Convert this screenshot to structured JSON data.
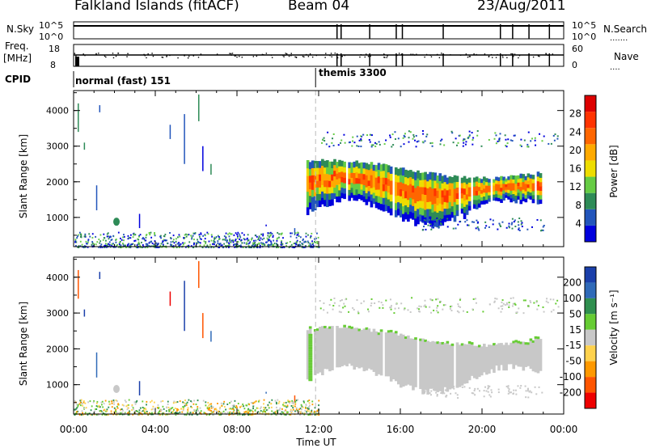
{
  "header": {
    "title": "Falkland Islands (fitACF)",
    "beam": "Beam 04",
    "date": "23/Aug/2011"
  },
  "panels": {
    "nsky_label": "N.Sky",
    "nsky_ticks": [
      "10^5",
      "10^0"
    ],
    "nsearch_label": "N.Search",
    "nsearch_ticks": [
      "10^5",
      "10^0"
    ],
    "freq_label": "Freq.",
    "freq_unit": "[MHz]",
    "freq_ticks": [
      "18",
      "8"
    ],
    "nave_label": "Nave",
    "nave_ticks": [
      "60",
      "0"
    ],
    "cpid_label": "CPID",
    "cpid_modes": [
      "normal (fast) 151",
      "themis 3300"
    ]
  },
  "colors": {
    "power": [
      "#0000dd",
      "#2255bb",
      "#2e8b57",
      "#66cc44",
      "#eedd00",
      "#ffaa00",
      "#ff6600",
      "#ff3300",
      "#dd0000"
    ],
    "velocity": [
      "#1a3faa",
      "#2f6ab8",
      "#2f8f4f",
      "#66cc33",
      "#c8c8c8",
      "#ffd24d",
      "#ff9900",
      "#ff5500",
      "#ee0000"
    ]
  },
  "chart_data": [
    {
      "type": "heatmap",
      "name": "power",
      "xlabel": "Time UT",
      "ylabel": "Slant Range [km]",
      "x_range": [
        "00:00",
        "24:00"
      ],
      "x_ticks": [
        "00:00",
        "04:00",
        "08:00",
        "12:00",
        "16:00",
        "20:00",
        "00:00"
      ],
      "ylim": [
        180,
        4560
      ],
      "y_ticks": [
        1000,
        2000,
        3000,
        4000
      ],
      "colorbar": {
        "label": "Power [dB]",
        "range": [
          0,
          32
        ],
        "ticks": [
          4,
          8,
          12,
          16,
          20,
          24,
          28
        ]
      }
    },
    {
      "type": "heatmap",
      "name": "velocity",
      "xlabel": "Time UT",
      "ylabel": "Slant Range [km]",
      "x_range": [
        "00:00",
        "24:00"
      ],
      "x_ticks": [
        "00:00",
        "04:00",
        "08:00",
        "12:00",
        "16:00",
        "20:00",
        "00:00"
      ],
      "ylim": [
        180,
        4560
      ],
      "y_ticks": [
        1000,
        2000,
        3000,
        4000
      ],
      "colorbar": {
        "label": "Velocity [m s⁻¹]",
        "levels": [
          -200,
          -100,
          -50,
          -15,
          15,
          50,
          100,
          200
        ]
      }
    }
  ]
}
